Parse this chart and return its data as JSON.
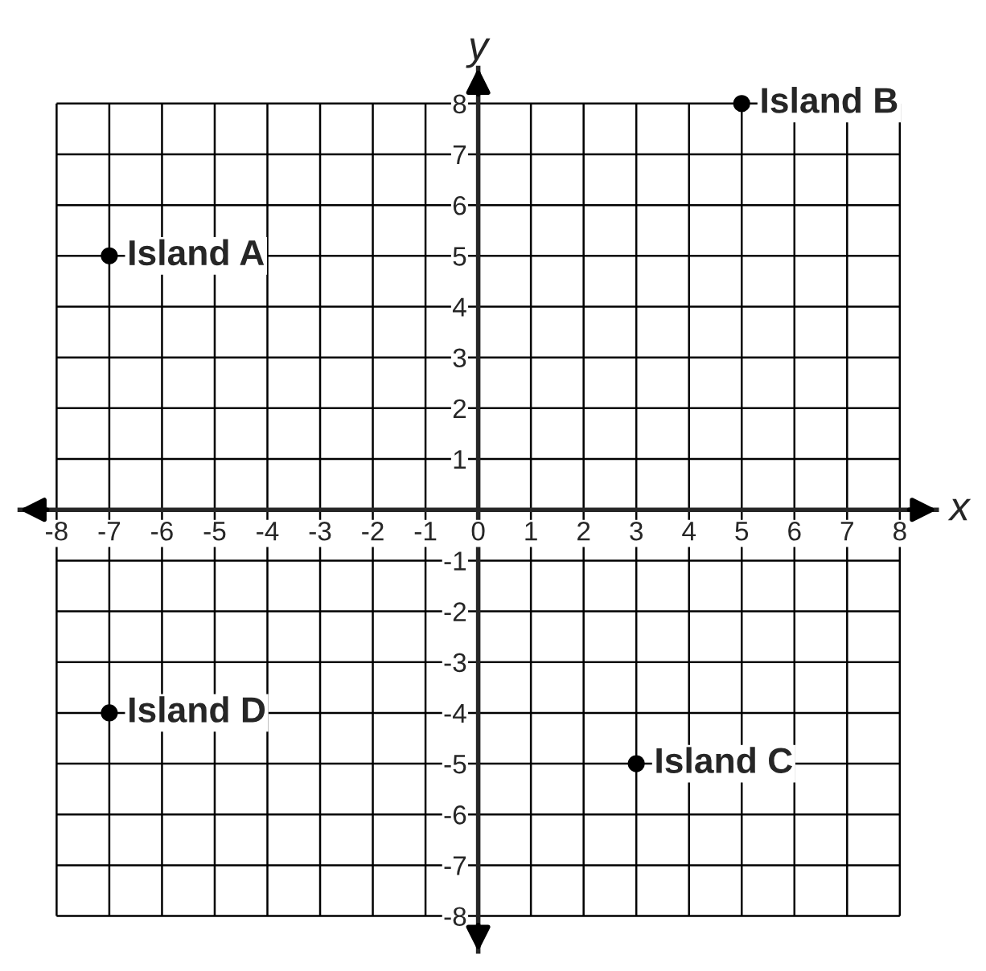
{
  "chart_data": {
    "type": "scatter",
    "xlabel": "x",
    "ylabel": "y",
    "series": [
      {
        "color": "#000000",
        "x": [
          -7,
          5,
          3,
          -7
        ],
        "values": [
          5,
          8,
          -5,
          -4
        ]
      }
    ],
    "xlim": [
      -8.7,
      8.7
    ],
    "ylim": [
      -8.7,
      8.7
    ],
    "xticks": [
      -8,
      -7,
      -6,
      -5,
      -4,
      -3,
      -2,
      -1,
      0,
      1,
      2,
      3,
      4,
      5,
      6,
      7,
      8
    ],
    "yticks": [
      -8,
      -7,
      -6,
      -5,
      -4,
      -3,
      -2,
      -1,
      {
        "value": 0,
        "label": null
      },
      1,
      2,
      3,
      4,
      5,
      6,
      7,
      8
    ],
    "grid": true,
    "marker": "circle",
    "annotations": [
      {
        "text": "Island A",
        "x": -7,
        "y": 5
      },
      {
        "text": "Island B",
        "x": 5,
        "y": 8
      },
      {
        "text": "Island C",
        "x": 3,
        "y": -5
      },
      {
        "text": "Island D",
        "x": -7,
        "y": -4
      }
    ]
  }
}
